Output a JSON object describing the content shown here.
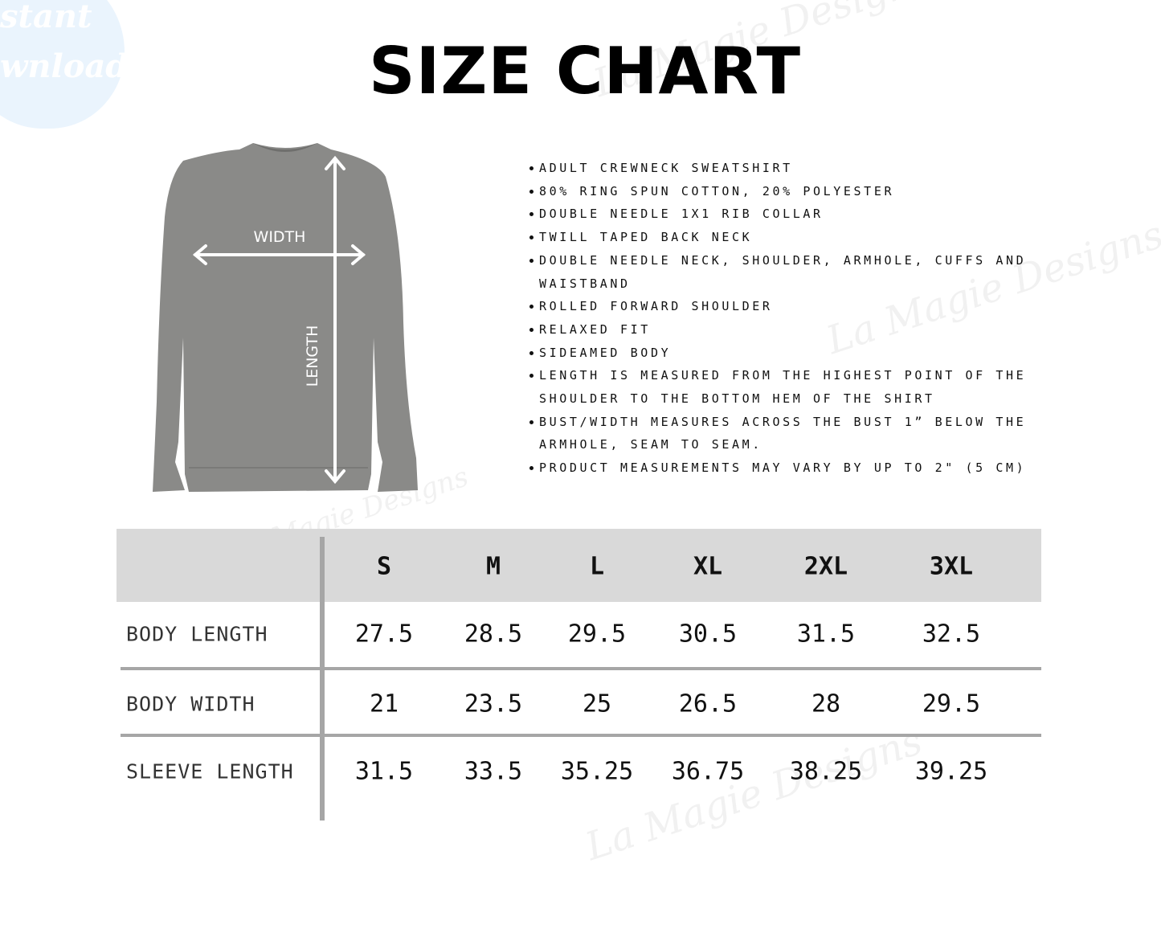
{
  "badge": {
    "text": "stant\nwnload"
  },
  "watermark": "La Magie Designs",
  "title": "SIZE CHART",
  "diagram": {
    "width_label": "WIDTH",
    "length_label": "LENGTH",
    "shirt_color": "#8a8a88"
  },
  "features": [
    "ADULT CREWNECK SWEATSHIRT",
    "80% RING SPUN COTTON, 20% POLYESTER",
    "DOUBLE NEEDLE 1X1 RIB COLLAR",
    "TWILL TAPED BACK NECK",
    "DOUBLE NEEDLE NECK, SHOULDER, ARMHOLE, CUFFS AND WAISTBAND",
    "ROLLED FORWARD SHOULDER",
    "RELAXED FIT",
    "SIDEAMED BODY",
    "LENGTH IS MEASURED FROM THE HIGHEST POINT OF THE SHOULDER TO THE BOTTOM HEM OF THE SHIRT",
    "BUST/WIDTH MEASURES ACROSS THE BUST 1” BELOW THE ARMHOLE, SEAM TO SEAM.",
    "PRODUCT MEASUREMENTS MAY VARY BY UP TO 2\" (5 CM)"
  ],
  "table": {
    "sizes": [
      "S",
      "M",
      "L",
      "XL",
      "2XL",
      "3XL"
    ],
    "rows": [
      {
        "label": "BODY LENGTH",
        "values": [
          "27.5",
          "28.5",
          "29.5",
          "30.5",
          "31.5",
          "32.5"
        ]
      },
      {
        "label": "BODY WIDTH",
        "values": [
          "21",
          "23.5",
          "25",
          "26.5",
          "28",
          "29.5"
        ]
      },
      {
        "label": "SLEEVE LENGTH",
        "values": [
          "31.5",
          "33.5",
          "35.25",
          "36.75",
          "38.25",
          "39.25"
        ]
      }
    ],
    "header_color": "#d9d9d9",
    "line_color": "#a6a6a6"
  }
}
